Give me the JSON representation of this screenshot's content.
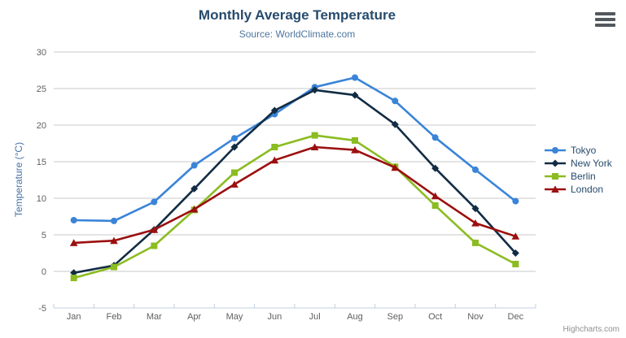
{
  "header": {
    "title": "Monthly Average Temperature",
    "subtitle": "Source: WorldClimate.com"
  },
  "credit": "Highcharts.com",
  "export_menu": {
    "icon": "hamburger-icon"
  },
  "colors": {
    "title": "#274b6d",
    "subtitle": "#4d759e",
    "axis_title": "#4672a8",
    "axis_labels": "#606060",
    "gridline": "#c8c8c8",
    "axis_line": "#c0d0e0",
    "legend_text": "#274b6d",
    "background": "#ffffff"
  },
  "chart_data": {
    "type": "line",
    "title": "Monthly Average Temperature",
    "subtitle": "Source: WorldClimate.com",
    "xlabel": "",
    "ylabel": "Temperature (°C)",
    "ylim": [
      -5,
      30
    ],
    "ytick_step": 5,
    "yticks": [
      30,
      25,
      20,
      15,
      10,
      5,
      0,
      -5
    ],
    "grid": true,
    "legend_position": "right",
    "categories": [
      "Jan",
      "Feb",
      "Mar",
      "Apr",
      "May",
      "Jun",
      "Jul",
      "Aug",
      "Sep",
      "Oct",
      "Nov",
      "Dec"
    ],
    "series": [
      {
        "name": "Tokyo",
        "color": "#3a84d8",
        "marker": "circle",
        "values": [
          7.0,
          6.9,
          9.5,
          14.5,
          18.2,
          21.5,
          25.2,
          26.5,
          23.3,
          18.3,
          13.9,
          9.6
        ]
      },
      {
        "name": "New York",
        "color": "#122c44",
        "marker": "diamond",
        "values": [
          -0.2,
          0.8,
          5.7,
          11.3,
          17.0,
          22.0,
          24.8,
          24.1,
          20.1,
          14.1,
          8.6,
          2.5
        ]
      },
      {
        "name": "Berlin",
        "color": "#8bbc21",
        "marker": "square",
        "values": [
          -0.9,
          0.6,
          3.5,
          8.4,
          13.5,
          17.0,
          18.6,
          17.9,
          14.3,
          9.0,
          3.9,
          1.0
        ]
      },
      {
        "name": "London",
        "color": "#9c0f0f",
        "marker": "triangle",
        "values": [
          3.9,
          4.2,
          5.7,
          8.5,
          11.9,
          15.2,
          17.0,
          16.6,
          14.2,
          10.3,
          6.6,
          4.8
        ]
      }
    ]
  }
}
